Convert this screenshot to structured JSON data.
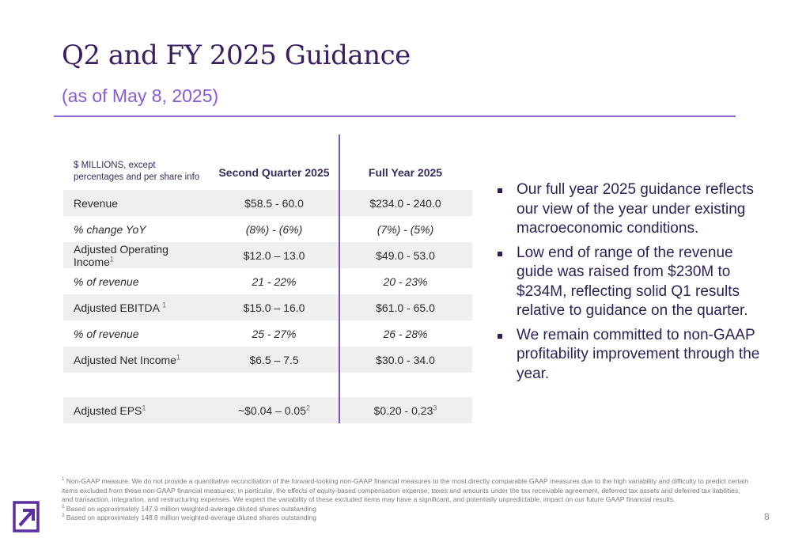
{
  "title": "Q2 and FY 2025 Guidance",
  "subtitle": "(as of May 8, 2025)",
  "table": {
    "header": {
      "col1_line1": "$ MILLIONS, except",
      "col1_line2": "percentages and per share info",
      "col2": "Second Quarter 2025",
      "col3": "Full Year 2025"
    },
    "rows": [
      {
        "label": "Revenue",
        "sup": "",
        "q2": "$58.5 - 60.0",
        "q2_sup": "",
        "fy": "$234.0 - 240.0",
        "fy_sup": ""
      },
      {
        "label": "% change YoY",
        "sup": "",
        "q2": "(8%) - (6%)",
        "q2_sup": "",
        "fy": "(7%) - (5%)",
        "fy_sup": ""
      },
      {
        "label": "Adjusted Operating Income",
        "sup": "1",
        "q2": "$12.0 – 13.0",
        "q2_sup": "",
        "fy": "$49.0 - 53.0",
        "fy_sup": ""
      },
      {
        "label": "% of revenue",
        "sup": "",
        "q2": "21 - 22%",
        "q2_sup": "",
        "fy": "20 - 23%",
        "fy_sup": ""
      },
      {
        "label": "Adjusted EBITDA ",
        "sup": "1",
        "q2": "$15.0 – 16.0",
        "q2_sup": "",
        "fy": "$61.0 - 65.0",
        "fy_sup": ""
      },
      {
        "label": "% of revenue",
        "sup": "",
        "q2": "25 - 27%",
        "q2_sup": "",
        "fy": "26 - 28%",
        "fy_sup": ""
      },
      {
        "label": "Adjusted Net Income",
        "sup": "1",
        "q2": "$6.5 – 7.5",
        "q2_sup": "",
        "fy": "$30.0 - 34.0",
        "fy_sup": ""
      },
      {
        "label": "Adjusted EPS",
        "sup": "1",
        "q2": "~$0.04 – 0.05",
        "q2_sup": "2",
        "fy": "$0.20 - 0.23",
        "fy_sup": "3"
      }
    ]
  },
  "bullets": [
    "Our full year 2025 guidance reflects our view of the year under existing macroeconomic conditions.",
    "Low end of range of the revenue guide was raised from $230M to $234M, reflecting solid Q1 results relative to guidance on the quarter.",
    "We remain committed to non-GAAP profitability improvement through the year."
  ],
  "footnotes": {
    "f1_mark": "1",
    "f1": "Non-GAAP measure. We do not provide a quantitative reconciliation of the forward-looking non-GAAP financial measures to the most directly comparable GAAP measures due to the high variability and difficulty to predict certain items excluded from these non-GAAP financial measures; in particular, the effects of equity-based compensation expense, taxes and amounts under the tax receivable agreement, deferred tax assets and deferred tax liabilities, and transaction, integration, and restructuring expenses. We expect the variability of these excluded items may have a significant, and potentially unpredictable, impact on our future GAAP financial results.",
    "f2_mark": "2",
    "f2": "Based on approximately 147.9 million weighted-average diluted shares outstanding",
    "f3_mark": "3",
    "f3": "Based on approximately 148.8 million weighted-average diluted shares outstanding"
  },
  "page_number": "8",
  "colors": {
    "accent": "#8e63d8",
    "title": "#3b1f63",
    "row_shade": "#efeff0",
    "logo": "#5b2ea6"
  },
  "icons": {
    "logo": "arrow-square-logo-icon",
    "bullet": "square-bullet-icon"
  }
}
